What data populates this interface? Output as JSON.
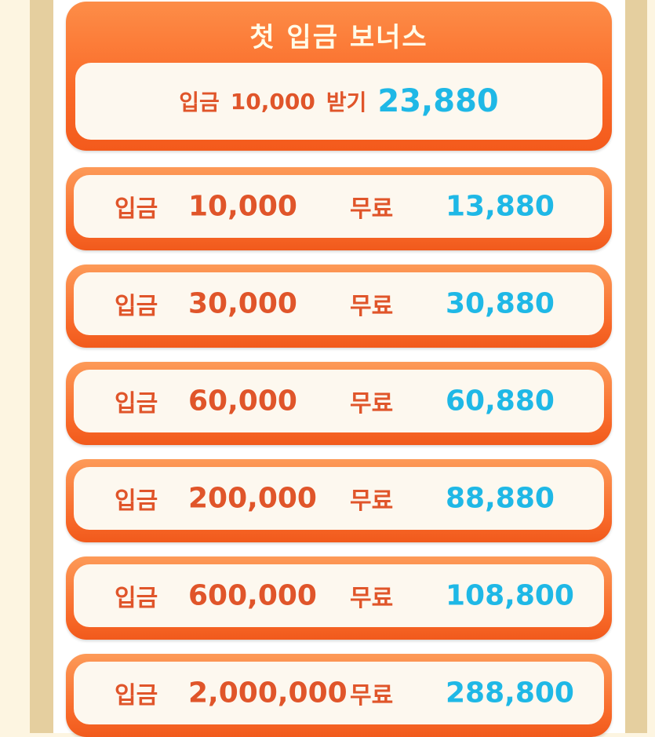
{
  "header": {
    "title": "첫 입금 보너스",
    "deposit_label": "입금",
    "deposit_amount": "10,000",
    "receive_label": "받기",
    "receive_amount": "23,880"
  },
  "rows": [
    {
      "deposit_label": "입금",
      "deposit": "10,000",
      "free_label": "무료",
      "bonus": "13,880"
    },
    {
      "deposit_label": "입금",
      "deposit": "30,000",
      "free_label": "무료",
      "bonus": "30,880"
    },
    {
      "deposit_label": "입금",
      "deposit": "60,000",
      "free_label": "무료",
      "bonus": "60,880"
    },
    {
      "deposit_label": "입금",
      "deposit": "200,000",
      "free_label": "무료",
      "bonus": "88,880"
    },
    {
      "deposit_label": "입금",
      "deposit": "600,000",
      "free_label": "무료",
      "bonus": "108,800"
    },
    {
      "deposit_label": "입금",
      "deposit": "2,000,000",
      "free_label": "무료",
      "bonus": "288,800"
    }
  ],
  "colors": {
    "orange": "#f86a2a",
    "text_orange": "#e0552a",
    "blue": "#1fb8e6",
    "cream": "#fdf8ef"
  }
}
